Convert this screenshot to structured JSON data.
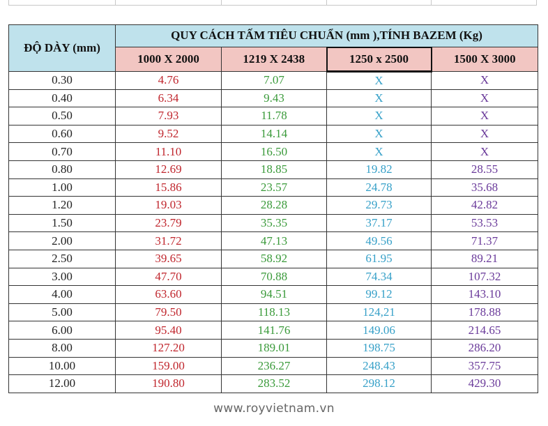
{
  "header": {
    "thickness": "ĐỘ DÀY (mm)",
    "title": "QUY CÁCH TẤM TIÊU CHUẨN (mm ),TÍNH BAZEM (Kg)"
  },
  "table": {
    "columns": [
      "1000 X 2000",
      "1219 X 2438",
      "1250 x 2500",
      "1500 X 3000"
    ],
    "rows": [
      [
        "0.30",
        "4.76",
        "7.07",
        "X",
        "X"
      ],
      [
        "0.40",
        "6.34",
        "9.43",
        "X",
        "X"
      ],
      [
        "0.50",
        "7.93",
        "11.78",
        "X",
        "X"
      ],
      [
        "0.60",
        "9.52",
        "14.14",
        "X",
        "X"
      ],
      [
        "0.70",
        "11.10",
        "16.50",
        "X",
        "X"
      ],
      [
        "0.80",
        "12.69",
        "18.85",
        "19.82",
        "28.55"
      ],
      [
        "1.00",
        "15.86",
        "23.57",
        "24.78",
        "35.68"
      ],
      [
        "1.20",
        "19.03",
        "28.28",
        "29.73",
        "42.82"
      ],
      [
        "1.50",
        "23.79",
        "35.35",
        "37.17",
        "53.53"
      ],
      [
        "2.00",
        "31.72",
        "47.13",
        "49.56",
        "71.37"
      ],
      [
        "2.50",
        "39.65",
        "58.92",
        "61.95",
        "89.21"
      ],
      [
        "3.00",
        "47.70",
        "70.88",
        "74.34",
        "107.32"
      ],
      [
        "4.00",
        "63.60",
        "94.51",
        "99.12",
        "143.10"
      ],
      [
        "5.00",
        "79.50",
        "118.13",
        "124,21",
        "178.88"
      ],
      [
        "6.00",
        "95.40",
        "141.76",
        "149.06",
        "214.65"
      ],
      [
        "8.00",
        "127.20",
        "189.01",
        "198.75",
        "286.20"
      ],
      [
        "10.00",
        "159.00",
        "236.27",
        "248.43",
        "357.75"
      ],
      [
        "12.00",
        "190.80",
        "283.52",
        "298.12",
        "429.30"
      ]
    ]
  },
  "footer": {
    "website": "www.royvietnam.vn"
  }
}
